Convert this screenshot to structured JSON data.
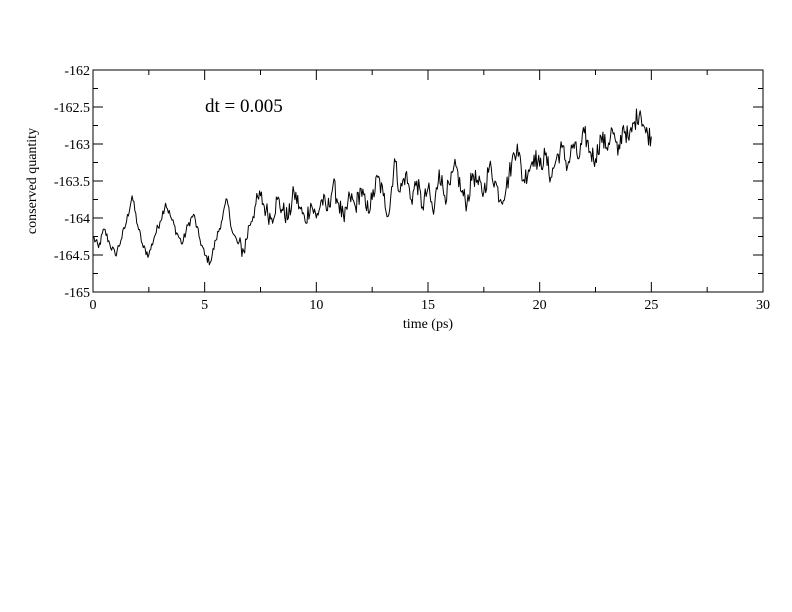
{
  "chart_data": {
    "type": "line",
    "title": "",
    "xlabel": "time (ps)",
    "ylabel": "conserved quantity",
    "xlim": [
      0,
      30
    ],
    "ylim": [
      -165,
      -162
    ],
    "xticks": [
      0,
      5,
      10,
      15,
      20,
      25,
      30
    ],
    "xtick_labels": [
      "0",
      "5",
      "10",
      "15",
      "20",
      "25",
      "30"
    ],
    "yticks": [
      -165,
      -164.5,
      -164,
      -163.5,
      -163,
      -162.5,
      -162
    ],
    "ytick_labels": [
      "-165",
      "-164.5",
      "-164",
      "-163.5",
      "-163",
      "-162.5",
      "-162"
    ],
    "grid": false,
    "legend": "none",
    "annotation": "dt = 0.005",
    "line_color": "#000000",
    "series": [
      {
        "x": [
          0,
          0.25,
          0.5,
          0.75,
          1.0,
          1.25,
          1.5,
          1.75,
          2.0,
          2.25,
          2.5,
          2.75,
          3.0,
          3.25,
          3.5,
          3.75,
          4.0,
          4.25,
          4.5,
          4.75,
          5.0,
          5.25,
          5.5,
          5.75,
          6.0,
          6.25,
          6.5,
          6.75,
          7.0,
          7.25,
          7.5,
          7.75,
          8.0,
          8.25,
          8.5,
          8.75,
          9.0,
          9.25,
          9.5,
          9.75,
          10.0,
          10.25,
          10.5,
          10.75,
          11.0,
          11.25,
          11.5,
          11.75,
          12.0,
          12.25,
          12.5,
          12.75,
          13.0,
          13.25,
          13.5,
          13.75,
          14.0,
          14.25,
          14.5,
          14.75,
          15.0,
          15.25,
          15.5,
          15.75,
          16.0,
          16.25,
          16.5,
          16.75,
          17.0,
          17.25,
          17.5,
          17.75,
          18.0,
          18.25,
          18.5,
          18.75,
          19.0,
          19.25,
          19.5,
          19.75,
          20.0,
          20.25,
          20.5,
          20.75,
          21.0,
          21.25,
          21.5,
          21.75,
          22.0,
          22.25,
          22.5,
          22.75,
          23.0,
          23.25,
          23.5,
          23.75,
          24.0,
          24.25,
          24.5,
          24.75,
          25.0
        ],
        "y": [
          -164.25,
          -164.4,
          -164.15,
          -164.35,
          -164.5,
          -164.3,
          -164.05,
          -163.7,
          -164.1,
          -164.4,
          -164.5,
          -164.25,
          -164.05,
          -163.8,
          -164.0,
          -164.2,
          -164.35,
          -164.1,
          -163.95,
          -164.25,
          -164.5,
          -164.6,
          -164.3,
          -164.05,
          -163.75,
          -164.2,
          -164.35,
          -164.45,
          -164.1,
          -163.85,
          -163.7,
          -163.9,
          -164.0,
          -163.75,
          -163.9,
          -164.0,
          -163.65,
          -163.85,
          -164.05,
          -163.8,
          -164.0,
          -163.75,
          -163.9,
          -163.55,
          -163.8,
          -164.05,
          -163.7,
          -163.85,
          -163.6,
          -163.9,
          -163.75,
          -163.45,
          -163.7,
          -163.95,
          -163.2,
          -163.65,
          -163.4,
          -163.75,
          -163.5,
          -163.85,
          -163.6,
          -163.95,
          -163.35,
          -163.7,
          -163.55,
          -163.3,
          -163.65,
          -163.8,
          -163.4,
          -163.55,
          -163.65,
          -163.3,
          -163.5,
          -163.75,
          -163.6,
          -163.25,
          -163.0,
          -163.5,
          -163.35,
          -163.15,
          -163.3,
          -163.15,
          -163.45,
          -163.2,
          -163.05,
          -163.3,
          -163.0,
          -163.2,
          -162.85,
          -163.1,
          -163.2,
          -162.9,
          -163.05,
          -162.8,
          -163.15,
          -162.75,
          -162.95,
          -162.7,
          -162.55,
          -162.85,
          -162.9
        ]
      }
    ]
  }
}
